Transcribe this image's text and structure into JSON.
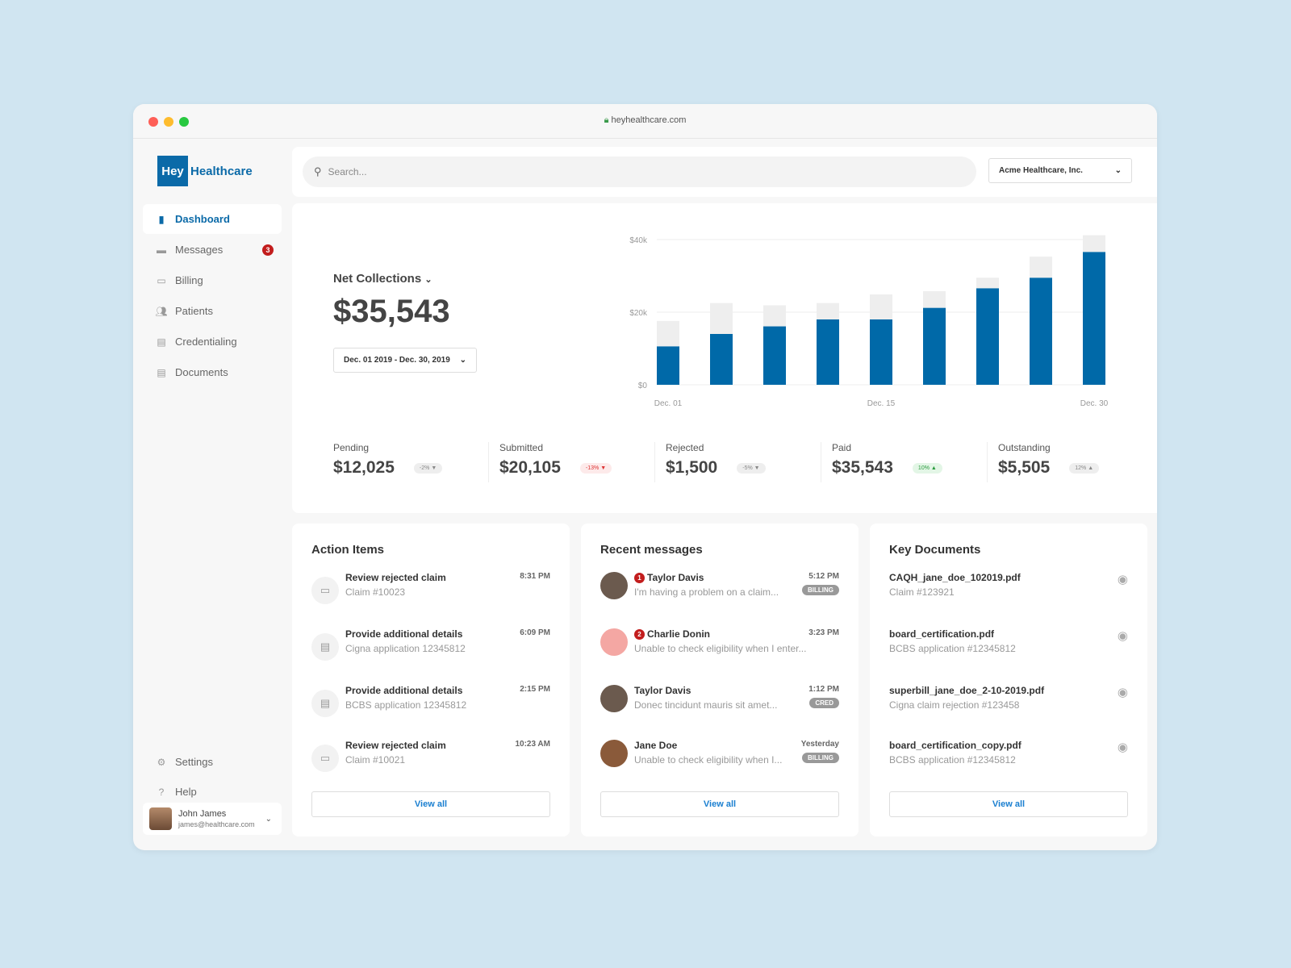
{
  "browser": {
    "url": "heyhealthcare.com"
  },
  "logo": {
    "box": "Hey",
    "text": "Healthcare"
  },
  "sidebar": {
    "items": [
      {
        "label": "Dashboard",
        "icon": "bar-chart-icon",
        "active": true
      },
      {
        "label": "Messages",
        "icon": "chat-icon",
        "badge": "3"
      },
      {
        "label": "Billing",
        "icon": "billing-icon"
      },
      {
        "label": "Patients",
        "icon": "people-icon"
      },
      {
        "label": "Credentialing",
        "icon": "clipboard-icon"
      },
      {
        "label": "Documents",
        "icon": "document-icon"
      }
    ],
    "bottom": [
      {
        "label": "Settings",
        "icon": "gear-icon"
      },
      {
        "label": "Help",
        "icon": "help-icon"
      }
    ],
    "user": {
      "name": "John James",
      "email": "james@healthcare.com"
    }
  },
  "search": {
    "placeholder": "Search..."
  },
  "org": {
    "selected": "Acme Healthcare, Inc."
  },
  "summary": {
    "title": "Net Collections",
    "amount": "$35,543",
    "date_range": "Dec. 01 2019 - Dec. 30, 2019"
  },
  "stats": [
    {
      "label": "Pending",
      "value": "$12,025",
      "change": "-2% ▼",
      "tone": "neutral"
    },
    {
      "label": "Submitted",
      "value": "$20,105",
      "change": "-13% ▼",
      "tone": "negative"
    },
    {
      "label": "Rejected",
      "value": "$1,500",
      "change": "-5% ▼",
      "tone": "neutral"
    },
    {
      "label": "Paid",
      "value": "$35,543",
      "change": "10% ▲",
      "tone": "positive"
    },
    {
      "label": "Outstanding",
      "value": "$5,505",
      "change": "12% ▲",
      "tone": "neutral"
    }
  ],
  "chart_data": {
    "type": "bar",
    "stacked": true,
    "ylim": [
      0,
      40000
    ],
    "yticks": [
      "$0",
      "$20k",
      "$40k"
    ],
    "xticks": [
      "Dec. 01",
      "Dec. 15",
      "Dec. 30"
    ],
    "grid": true,
    "series": [
      {
        "values": [
          10600,
          14000,
          16100,
          18000,
          18000,
          21200,
          26600,
          29500,
          36600
        ],
        "color": "#0069a8"
      },
      {
        "values": [
          7000,
          8500,
          5800,
          4500,
          6900,
          4600,
          2900,
          5800,
          4600
        ],
        "color": "#eeeeee"
      }
    ]
  },
  "action_items": {
    "title": "Action Items",
    "view_all": "View all",
    "items": [
      {
        "title": "Review rejected claim",
        "sub": "Claim #10023",
        "time": "8:31 PM",
        "icon": "billing-icon"
      },
      {
        "title": "Provide additional details",
        "sub": "Cigna application 12345812",
        "time": "6:09 PM",
        "icon": "clipboard-icon"
      },
      {
        "title": "Provide additional details",
        "sub": "BCBS application 12345812",
        "time": "2:15 PM",
        "icon": "clipboard-icon"
      },
      {
        "title": "Review rejected claim",
        "sub": "Claim #10021",
        "time": "10:23 AM",
        "icon": "billing-icon"
      }
    ]
  },
  "messages": {
    "title": "Recent messages",
    "view_all": "View all",
    "items": [
      {
        "unread": "1",
        "name": "Taylor Davis",
        "text": "I'm having a problem on a claim...",
        "time": "5:12 PM",
        "tag": "BILLING"
      },
      {
        "unread": "2",
        "name": "Charlie Donin",
        "text": "Unable to check eligibility when I enter...",
        "time": "3:23 PM",
        "tag": ""
      },
      {
        "unread": "",
        "name": "Taylor Davis",
        "text": "Donec tincidunt mauris sit amet...",
        "time": "1:12 PM",
        "tag": "CRED"
      },
      {
        "unread": "",
        "name": "Jane Doe",
        "text": "Unable to check eligibility when I...",
        "time": "Yesterday",
        "tag": "BILLING"
      }
    ]
  },
  "documents": {
    "title": "Key Documents",
    "view_all": "View all",
    "items": [
      {
        "name": "CAQH_jane_doe_102019.pdf",
        "sub": "Claim #123921"
      },
      {
        "name": "board_certification.pdf",
        "sub": "BCBS application #12345812"
      },
      {
        "name": "superbill_jane_doe_2-10-2019.pdf",
        "sub": "Cigna claim rejection #123458"
      },
      {
        "name": "board_certification_copy.pdf",
        "sub": "BCBS application #12345812"
      }
    ]
  }
}
